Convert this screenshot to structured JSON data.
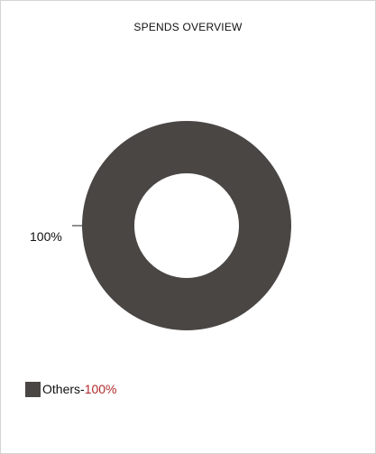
{
  "header": {
    "title": "SPENDS OVERVIEW"
  },
  "colors": {
    "slice": "#4a4644",
    "percent_text": "#b0292b",
    "leader_line": "#222222"
  },
  "chart_data": {
    "type": "pie",
    "title": "SPENDS OVERVIEW",
    "donut": true,
    "slices": [
      {
        "label": "Others",
        "value": 100,
        "value_label": "100%"
      }
    ],
    "legend_placement": "bottom-left"
  },
  "legend": {
    "items": [
      {
        "name": "Others",
        "separator": "-",
        "percent": "100%"
      }
    ]
  }
}
